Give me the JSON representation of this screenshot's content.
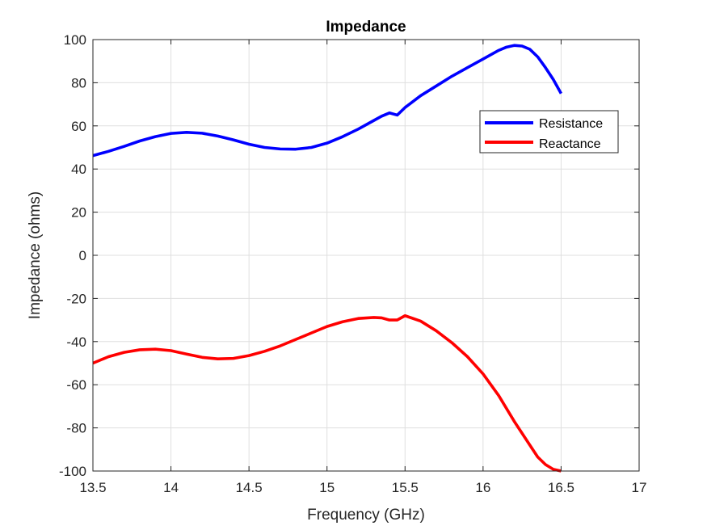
{
  "chart_data": {
    "type": "line",
    "title": "Impedance",
    "xlabel": "Frequency (GHz)",
    "ylabel": "Impedance (ohms)",
    "xlim": [
      13.5,
      17
    ],
    "ylim": [
      -100,
      100
    ],
    "xticks": [
      "13.5",
      "14",
      "14.5",
      "15",
      "15.5",
      "16",
      "16.5",
      "17"
    ],
    "yticks": [
      "100",
      "80",
      "60",
      "40",
      "20",
      "0",
      "-20",
      "-40",
      "-60",
      "-80",
      "-100"
    ],
    "grid": true,
    "legend_position": "top-right",
    "series": [
      {
        "name": "Resistance",
        "color": "#0000ff",
        "x": [
          13.5,
          13.6,
          13.7,
          13.8,
          13.9,
          14.0,
          14.1,
          14.2,
          14.3,
          14.4,
          14.5,
          14.6,
          14.7,
          14.8,
          14.9,
          15.0,
          15.1,
          15.2,
          15.3,
          15.35,
          15.4,
          15.45,
          15.5,
          15.6,
          15.7,
          15.8,
          15.9,
          16.0,
          16.1,
          16.15,
          16.2,
          16.25,
          16.3,
          16.35,
          16.4,
          16.45,
          16.5
        ],
        "y": [
          46.2,
          48.2,
          50.5,
          53.0,
          55.0,
          56.5,
          57.0,
          56.6,
          55.3,
          53.5,
          51.5,
          50.0,
          49.3,
          49.2,
          50.0,
          52.0,
          55.0,
          58.5,
          62.5,
          64.5,
          66.0,
          65.0,
          68.5,
          74.0,
          78.5,
          83.0,
          87.0,
          91.0,
          95.0,
          96.5,
          97.3,
          97.0,
          95.5,
          92.0,
          87.0,
          81.5,
          75.0
        ]
      },
      {
        "name": "Reactance",
        "color": "#ff0000",
        "x": [
          13.5,
          13.6,
          13.7,
          13.8,
          13.9,
          14.0,
          14.1,
          14.2,
          14.3,
          14.4,
          14.5,
          14.6,
          14.7,
          14.8,
          14.9,
          15.0,
          15.1,
          15.2,
          15.3,
          15.35,
          15.4,
          15.45,
          15.5,
          15.6,
          15.7,
          15.8,
          15.9,
          16.0,
          16.1,
          16.2,
          16.3,
          16.35,
          16.4,
          16.45,
          16.5
        ],
        "y": [
          -50.0,
          -47.0,
          -45.0,
          -43.8,
          -43.5,
          -44.2,
          -45.8,
          -47.3,
          -48.0,
          -47.8,
          -46.5,
          -44.5,
          -42.0,
          -39.0,
          -36.0,
          -33.0,
          -30.8,
          -29.3,
          -28.8,
          -29.0,
          -30.0,
          -30.0,
          -28.0,
          -30.5,
          -35.0,
          -40.5,
          -47.0,
          -55.0,
          -65.0,
          -77.0,
          -88.0,
          -93.5,
          -97.0,
          -99.2,
          -100.0
        ]
      }
    ]
  }
}
